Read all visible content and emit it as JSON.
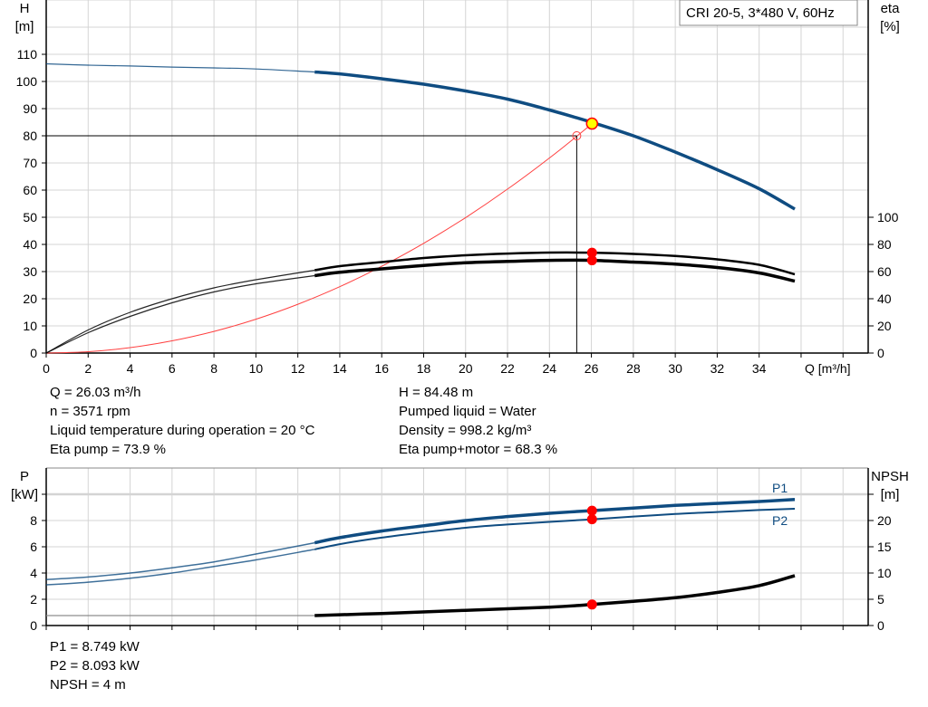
{
  "chart_data": [
    {
      "type": "line",
      "title": "CRI 20-5, 3*480 V, 60Hz",
      "xlabel": "Q [m³/h]",
      "ylabel_left": [
        "H",
        "[m]"
      ],
      "ylabel_right": [
        "eta",
        "[%]"
      ],
      "xlim": [
        0,
        39.2
      ],
      "ylim_left": [
        0,
        130
      ],
      "ylim_right": [
        0,
        260
      ],
      "xticks": [
        0,
        2,
        4,
        6,
        8,
        10,
        12,
        14,
        16,
        18,
        20,
        22,
        24,
        26,
        28,
        30,
        32,
        34
      ],
      "yticks_left": [
        0,
        10,
        20,
        30,
        40,
        50,
        60,
        70,
        80,
        90,
        100,
        110
      ],
      "yticks_right": [
        0,
        20,
        40,
        60,
        80,
        100
      ],
      "grid": true,
      "colors": {
        "head": "#0f4c81",
        "eta": "#000000",
        "system": "#ff4040",
        "marker": "#ff0000",
        "duty_fill": "#ffff00",
        "grid": "#d0d0d0"
      },
      "series": [
        {
          "key": "head",
          "axis": "left",
          "thin_until": 12.8,
          "x": [
            0,
            2,
            4,
            6,
            8,
            10,
            12.8,
            14,
            16,
            18,
            20,
            22,
            24,
            26,
            28,
            30,
            32,
            34,
            35.7
          ],
          "y": [
            106.5,
            106,
            105.7,
            105.3,
            105,
            104.6,
            103.5,
            102.8,
            101,
            99,
            96.5,
            93.5,
            89.5,
            85,
            80,
            74,
            67.5,
            60.5,
            53
          ]
        },
        {
          "key": "eta_pump",
          "axis": "right",
          "thin_until": 12.8,
          "x": [
            0,
            2,
            4,
            6,
            8,
            10,
            12.8,
            14,
            16,
            18,
            20,
            22,
            24,
            26,
            28,
            30,
            32,
            34,
            35.7
          ],
          "y": [
            0,
            17,
            30,
            40,
            48,
            54,
            61,
            64,
            67,
            70,
            72,
            73.3,
            74,
            73.9,
            73,
            71.5,
            69,
            65,
            58
          ]
        },
        {
          "key": "eta_pump_motor",
          "axis": "right",
          "thin_until": 12.8,
          "x": [
            0,
            2,
            4,
            6,
            8,
            10,
            12.8,
            14,
            16,
            18,
            20,
            22,
            24,
            26,
            28,
            30,
            32,
            34,
            35.7
          ],
          "y": [
            0,
            15,
            27,
            37,
            45,
            51,
            57,
            59.5,
            62,
            64.5,
            66.5,
            67.5,
            68.3,
            68.3,
            67,
            65.5,
            63,
            59,
            53
          ]
        }
      ],
      "system_curve": {
        "x": [
          0,
          2,
          4,
          6,
          8,
          10,
          12,
          14,
          16,
          18,
          20,
          22,
          24,
          25.3,
          26.03
        ],
        "k": 0.1247
      },
      "duty_point": {
        "Q": 26.03,
        "H": 84.48,
        "eta_pump": 73.9,
        "eta_pump_motor": 68.3
      },
      "requested_point": {
        "Q": 25.3,
        "H": 80
      }
    },
    {
      "type": "line",
      "xlabel": "",
      "ylabel_left": [
        "P",
        "[kW]"
      ],
      "ylabel_right": [
        "NPSH",
        "[m]"
      ],
      "xlim": [
        0,
        39.2
      ],
      "ylim_left": [
        0,
        12
      ],
      "ylim_right": [
        0,
        30
      ],
      "xticks": [
        0,
        2,
        4,
        6,
        8,
        10,
        12,
        14,
        16,
        18,
        20,
        22,
        24,
        26,
        28,
        30,
        32,
        34,
        36,
        38
      ],
      "yticks_left": [
        0,
        2,
        4,
        6,
        8,
        10
      ],
      "ytick_labels_left": [
        "0",
        "2",
        "4",
        "6",
        "8",
        ""
      ],
      "yticks_right": [
        0,
        5,
        10,
        15,
        20,
        25
      ],
      "ytick_labels_right": [
        "0",
        "5",
        "10",
        "15",
        "20",
        ""
      ],
      "grid": true,
      "colors": {
        "power": "#0f4c81",
        "npsh": "#000000",
        "marker": "#ff0000"
      },
      "series": [
        {
          "key": "P1",
          "name": "P1",
          "axis": "left",
          "thin_until": 12.8,
          "x": [
            0,
            2,
            4,
            6,
            8,
            10,
            12.8,
            14,
            16,
            18,
            20,
            22,
            24,
            26,
            28,
            30,
            32,
            34,
            35.7
          ],
          "y": [
            3.5,
            3.7,
            4.0,
            4.4,
            4.85,
            5.45,
            6.3,
            6.7,
            7.2,
            7.6,
            8.0,
            8.3,
            8.55,
            8.75,
            8.95,
            9.15,
            9.3,
            9.45,
            9.6
          ]
        },
        {
          "key": "P2",
          "name": "P2",
          "axis": "left",
          "thin_until": 12.8,
          "x": [
            0,
            2,
            4,
            6,
            8,
            10,
            12.8,
            14,
            16,
            18,
            20,
            22,
            24,
            26,
            28,
            30,
            32,
            34,
            35.7
          ],
          "y": [
            3.1,
            3.3,
            3.6,
            4.0,
            4.5,
            5.0,
            5.8,
            6.2,
            6.7,
            7.1,
            7.45,
            7.7,
            7.9,
            8.09,
            8.3,
            8.5,
            8.65,
            8.8,
            8.9
          ]
        },
        {
          "key": "NPSH",
          "axis": "right",
          "thin_until": 12.8,
          "x": [
            0,
            4,
            8,
            12.8,
            16,
            20,
            24,
            26,
            28,
            30,
            32,
            34,
            35.7
          ],
          "y": [
            1.9,
            1.9,
            1.9,
            1.9,
            2.3,
            2.9,
            3.5,
            4.0,
            4.6,
            5.3,
            6.3,
            7.6,
            9.5
          ]
        }
      ],
      "duty_point": {
        "Q": 26.03,
        "P1": 8.749,
        "P2": 8.093,
        "NPSH": 4
      }
    }
  ],
  "info_top": {
    "left": [
      "Q = 26.03 m³/h",
      "n = 3571 rpm",
      "Liquid temperature during operation = 20 °C",
      "Eta pump = 73.9 %"
    ],
    "right": [
      "H = 84.48 m",
      "Pumped liquid = Water",
      "Density = 998.2 kg/m³",
      "Eta pump+motor = 68.3 %"
    ]
  },
  "info_bottom": [
    "P1 = 8.749 kW",
    "P2 = 8.093 kW",
    "NPSH = 4 m"
  ]
}
